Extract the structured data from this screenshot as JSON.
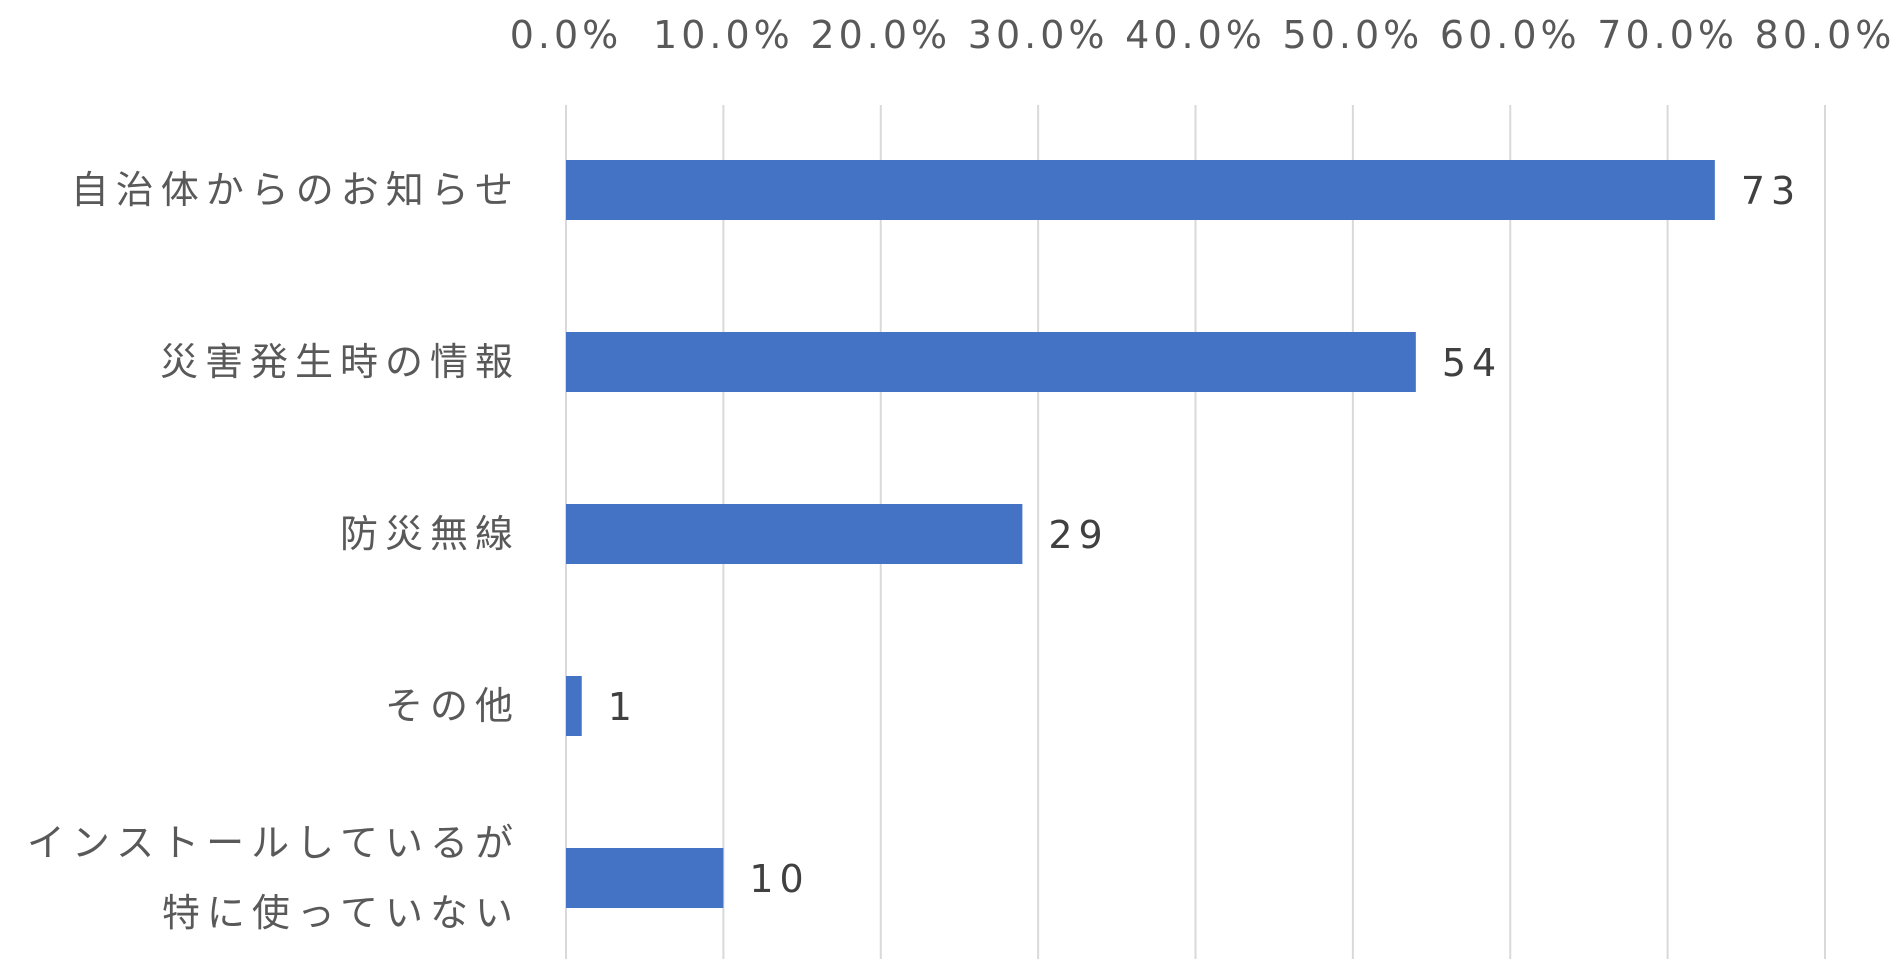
{
  "chart_data": {
    "type": "bar",
    "orientation": "horizontal",
    "title": "",
    "xlabel": "",
    "ylabel": "",
    "xlim": [
      0,
      80
    ],
    "x_ticks": [
      "0.0%",
      "10.0%",
      "20.0%",
      "30.0%",
      "40.0%",
      "50.0%",
      "60.0%",
      "70.0%",
      "80.0%"
    ],
    "x_axis_position": "top",
    "grid": "vertical",
    "legend": "none",
    "categories": [
      [
        "自治体からのお知らせ"
      ],
      [
        "災害発生時の情報"
      ],
      [
        "防災無線"
      ],
      [
        "その他"
      ],
      [
        "インストールしているが",
        "特に使っていない"
      ]
    ],
    "values": [
      73,
      54,
      29,
      1,
      10
    ],
    "data_labels": [
      "73",
      "54",
      "29",
      "1",
      "10"
    ],
    "colors": {
      "bar": "#4472C4",
      "grid": "#D9D9D9",
      "tick_text": "#595959",
      "label_text": "#404040"
    }
  }
}
